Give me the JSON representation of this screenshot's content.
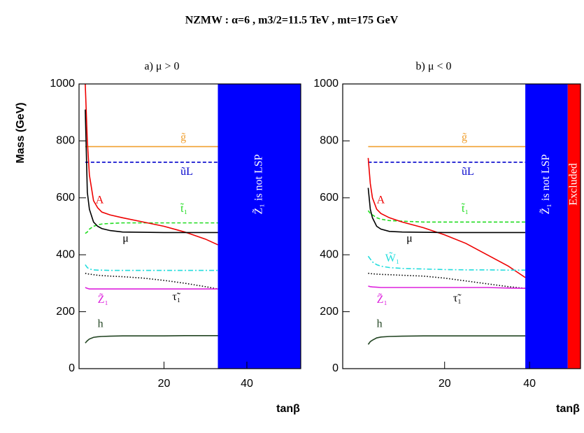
{
  "title": "NZMW : α=6 ,  m3/2=11.5 TeV ,  mt=175 GeV",
  "chart_data": [
    {
      "type": "line",
      "title": "a)  μ > 0",
      "x_label": "tanβ",
      "y_label": "Mass (GeV)",
      "xlim": [
        -0.5,
        53
      ],
      "xticks": [
        20,
        40
      ],
      "ylim": [
        0,
        1000
      ],
      "yticks": [
        0,
        200,
        400,
        600,
        800,
        1000
      ],
      "x": [
        1,
        1.5,
        2,
        3,
        4,
        5,
        7,
        10,
        15,
        20,
        25,
        30,
        33
      ],
      "regions": [
        {
          "x0": 33,
          "x1": 53,
          "color": "#0000ff",
          "label": "Z̃₁ is not LSP"
        }
      ],
      "series": [
        {
          "name": "g̃",
          "color": "#f0a030",
          "style": "solid",
          "values": [
            780,
            780,
            780,
            780,
            780,
            780,
            780,
            780,
            780,
            780,
            780,
            780,
            780
          ]
        },
        {
          "name": "ũL",
          "color": "#0000cc",
          "style": "dashed",
          "values": [
            725,
            725,
            725,
            725,
            725,
            725,
            725,
            725,
            725,
            725,
            725,
            725,
            725
          ]
        },
        {
          "name": "t̃₁",
          "color": "#22dd22",
          "style": "dashed",
          "values": [
            475,
            480,
            490,
            500,
            505,
            508,
            510,
            512,
            512,
            512,
            512,
            512,
            512
          ]
        },
        {
          "name": "A",
          "color": "#ee0000",
          "style": "solid",
          "values": [
            1000,
            800,
            680,
            590,
            565,
            550,
            540,
            530,
            515,
            500,
            480,
            455,
            435
          ]
        },
        {
          "name": "μ",
          "color": "#000000",
          "style": "solid",
          "values": [
            910,
            620,
            560,
            515,
            500,
            492,
            485,
            480,
            479,
            478,
            478,
            478,
            478
          ]
        },
        {
          "color": "#22dddd",
          "style": "dashdot",
          "values": [
            365,
            355,
            350,
            347,
            346,
            346,
            345,
            345,
            345,
            345,
            345,
            345,
            345
          ]
        },
        {
          "name": "τ̃₁",
          "color": "#000000",
          "style": "dotted",
          "values": [
            335,
            333,
            332,
            330,
            328,
            327,
            325,
            323,
            318,
            310,
            300,
            288,
            280
          ]
        },
        {
          "name": "Z̃₁",
          "color": "#dd22dd",
          "style": "solid",
          "values": [
            285,
            282,
            280,
            280,
            280,
            280,
            280,
            280,
            280,
            280,
            280,
            280,
            280
          ]
        },
        {
          "name": "h",
          "color": "#224422",
          "style": "solid",
          "values": [
            90,
            98,
            104,
            110,
            112,
            113,
            114,
            115,
            115,
            115,
            116,
            116,
            116
          ]
        }
      ]
    },
    {
      "type": "line",
      "title": "b)  μ < 0",
      "x_label": "tanβ",
      "xlim": [
        -4,
        52
      ],
      "xticks": [
        20,
        40
      ],
      "ylim": [
        0,
        1000
      ],
      "yticks": [
        0,
        200,
        400,
        600,
        800,
        1000
      ],
      "x": [
        2,
        2.5,
        3,
        4,
        5,
        7,
        10,
        15,
        20,
        25,
        30,
        35,
        39
      ],
      "regions": [
        {
          "x0": 39,
          "x1": 49,
          "color": "#0000ff",
          "label": "Z̃₁ is not LSP"
        },
        {
          "x0": 49,
          "x1": 52,
          "color": "#ff0000",
          "label": "Excluded"
        }
      ],
      "series": [
        {
          "name": "g̃",
          "color": "#f0a030",
          "style": "solid",
          "values": [
            780,
            780,
            780,
            780,
            780,
            780,
            780,
            780,
            780,
            780,
            780,
            780,
            780
          ]
        },
        {
          "name": "ũL",
          "color": "#0000cc",
          "style": "dashed",
          "values": [
            725,
            725,
            725,
            725,
            725,
            725,
            725,
            725,
            725,
            725,
            725,
            725,
            725
          ]
        },
        {
          "name": "t̃₁",
          "color": "#22dd22",
          "style": "dashed",
          "values": [
            555,
            545,
            540,
            530,
            525,
            520,
            518,
            515,
            515,
            515,
            515,
            515,
            515
          ]
        },
        {
          "name": "A",
          "color": "#ee0000",
          "style": "solid",
          "values": [
            740,
            650,
            600,
            560,
            545,
            530,
            515,
            495,
            470,
            440,
            400,
            360,
            320
          ]
        },
        {
          "name": "μ",
          "color": "#000000",
          "style": "solid",
          "values": [
            635,
            560,
            530,
            500,
            490,
            482,
            480,
            479,
            478,
            478,
            478,
            478,
            478
          ]
        },
        {
          "name": "W̃₁",
          "color": "#22dddd",
          "style": "dashdot",
          "values": [
            395,
            385,
            375,
            365,
            360,
            355,
            352,
            350,
            348,
            347,
            347,
            346,
            346
          ]
        },
        {
          "name": "τ̃₁",
          "color": "#000000",
          "style": "dotted",
          "values": [
            335,
            334,
            333,
            332,
            331,
            330,
            328,
            325,
            318,
            308,
            298,
            288,
            282
          ]
        },
        {
          "name": "Z̃₁",
          "color": "#dd22dd",
          "style": "solid",
          "values": [
            290,
            288,
            287,
            286,
            285,
            285,
            285,
            285,
            285,
            285,
            285,
            283,
            282
          ]
        },
        {
          "name": "h",
          "color": "#224422",
          "style": "solid",
          "values": [
            85,
            95,
            100,
            108,
            111,
            113,
            114,
            115,
            115,
            115,
            115,
            115,
            115
          ]
        }
      ]
    }
  ]
}
